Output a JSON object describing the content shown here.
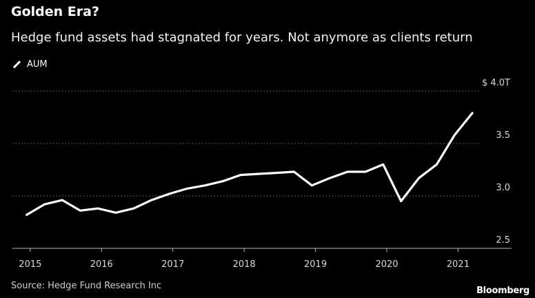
{
  "chart_data": {
    "type": "line",
    "title": "Golden Era?",
    "subtitle": "Hedge fund assets had stagnated for years. Not anymore as clients return",
    "legend": [
      "AUM"
    ],
    "legend_position": "top-left",
    "source": "Source: Hedge Fund Research Inc",
    "brand": "Bloomberg",
    "xlabel": "",
    "ylabel": "",
    "x_ticks": [
      "2015",
      "2016",
      "2017",
      "2018",
      "2019",
      "2020",
      "2021"
    ],
    "y_ticks": [
      "$ 4.0T",
      "3.5",
      "3.0",
      "2.5"
    ],
    "xlim": [
      2014.75,
      2021.75
    ],
    "ylim": [
      2.5,
      4.0
    ],
    "grid": true,
    "series": [
      {
        "name": "AUM",
        "x": [
          2014.95,
          2015.2,
          2015.45,
          2015.7,
          2015.95,
          2016.2,
          2016.45,
          2016.7,
          2016.95,
          2017.2,
          2017.45,
          2017.7,
          2017.95,
          2018.2,
          2018.45,
          2018.7,
          2018.95,
          2019.2,
          2019.45,
          2019.7,
          2019.95,
          2020.2,
          2020.45,
          2020.7,
          2020.95,
          2021.2
        ],
        "values": [
          2.82,
          2.92,
          2.96,
          2.86,
          2.88,
          2.84,
          2.88,
          2.96,
          3.02,
          3.07,
          3.1,
          3.14,
          3.2,
          3.21,
          3.22,
          3.23,
          3.1,
          3.17,
          3.23,
          3.23,
          3.3,
          2.95,
          3.17,
          3.3,
          3.58,
          3.79
        ]
      }
    ]
  }
}
